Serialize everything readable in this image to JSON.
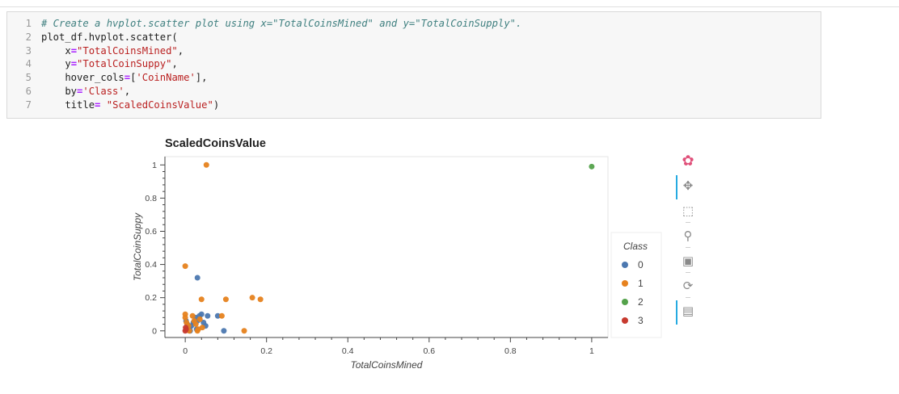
{
  "code_cell": {
    "lines": [
      {
        "n": "1",
        "segs": [
          {
            "c": "cm",
            "t": "# Create a hvplot.scatter plot using x=\"TotalCoinsMined\" and y=\"TotalCoinSupply\"."
          }
        ]
      },
      {
        "n": "2",
        "segs": [
          {
            "c": "",
            "t": "plot_df.hvplot.scatter("
          }
        ]
      },
      {
        "n": "3",
        "segs": [
          {
            "c": "",
            "t": "    x"
          },
          {
            "c": "op",
            "t": "="
          },
          {
            "c": "st",
            "t": "\"TotalCoinsMined\""
          },
          {
            "c": "",
            "t": ","
          }
        ]
      },
      {
        "n": "4",
        "segs": [
          {
            "c": "",
            "t": "    y"
          },
          {
            "c": "op",
            "t": "="
          },
          {
            "c": "st",
            "t": "\"TotalCoinSuppy\""
          },
          {
            "c": "",
            "t": ","
          }
        ]
      },
      {
        "n": "5",
        "segs": [
          {
            "c": "",
            "t": "    hover_cols"
          },
          {
            "c": "op",
            "t": "="
          },
          {
            "c": "",
            "t": "["
          },
          {
            "c": "st",
            "t": "'CoinName'"
          },
          {
            "c": "",
            "t": "],"
          }
        ]
      },
      {
        "n": "6",
        "segs": [
          {
            "c": "",
            "t": "    by"
          },
          {
            "c": "op",
            "t": "="
          },
          {
            "c": "st",
            "t": "'Class'"
          },
          {
            "c": "",
            "t": ","
          }
        ]
      },
      {
        "n": "7",
        "segs": [
          {
            "c": "",
            "t": "    title"
          },
          {
            "c": "op",
            "t": "="
          },
          {
            "c": "",
            "t": " "
          },
          {
            "c": "st",
            "t": "\"ScaledCoinsValue\""
          },
          {
            "c": "",
            "t": ")"
          }
        ]
      }
    ]
  },
  "toolbar": {
    "tools": [
      {
        "name": "bokeh-logo-icon",
        "glyph": "✿",
        "active": false,
        "interactable": false
      },
      {
        "name": "pan-icon",
        "glyph": "✥",
        "active": true,
        "interactable": true
      },
      {
        "name": "box-zoom-icon",
        "glyph": "⬚",
        "active": false,
        "interactable": true
      },
      {
        "name": "wheel-zoom-icon",
        "glyph": "⚲",
        "active": false,
        "interactable": true
      },
      {
        "name": "save-icon",
        "glyph": "▣",
        "active": false,
        "interactable": true
      },
      {
        "name": "reset-icon",
        "glyph": "⟳",
        "active": false,
        "interactable": true
      },
      {
        "name": "hover-icon",
        "glyph": "▤",
        "active": true,
        "interactable": true
      }
    ]
  },
  "chart_data": {
    "type": "scatter",
    "title": "ScaledCoinsValue",
    "xlabel": "TotalCoinsMined",
    "ylabel": "TotalCoinSuppy",
    "xlim": [
      -0.05,
      1.04
    ],
    "ylim": [
      -0.04,
      1.05
    ],
    "xticks": [
      0,
      0.2,
      0.4,
      0.6,
      0.8,
      1
    ],
    "xtick_labels": [
      "0",
      "0.2",
      "0.4",
      "0.6",
      "0.8",
      "1"
    ],
    "yticks": [
      0,
      0.2,
      0.4,
      0.6,
      0.8,
      1
    ],
    "ytick_labels": [
      "0",
      "0.2",
      "0.4",
      "0.6",
      "0.8",
      "1"
    ],
    "grid": false,
    "legend": {
      "title": "Class",
      "placement": "right"
    },
    "series": [
      {
        "name": "0",
        "color": "#30a2da",
        "points": [
          [
            0.002,
            0.06
          ],
          [
            0.005,
            0.04
          ],
          [
            0.01,
            0.02
          ],
          [
            0.015,
            0.03
          ],
          [
            0.02,
            0.05
          ],
          [
            0.025,
            0.08
          ],
          [
            0.03,
            0.06
          ],
          [
            0.035,
            0.09
          ],
          [
            0.04,
            0.1
          ],
          [
            0.045,
            0.05
          ],
          [
            0.05,
            0.03
          ],
          [
            0.055,
            0.09
          ],
          [
            0.03,
            0.32
          ],
          [
            0.08,
            0.09
          ],
          [
            0.095,
            0.0
          ],
          [
            0.012,
            0.0
          ],
          [
            0.028,
            0.01
          ]
        ]
      },
      {
        "name": "1",
        "color": "#fc4f30",
        "points": [
          [
            0.0,
            0.39
          ],
          [
            0.052,
            1.0
          ],
          [
            0.04,
            0.19
          ],
          [
            0.1,
            0.19
          ],
          [
            0.165,
            0.2
          ],
          [
            0.185,
            0.19
          ],
          [
            0.145,
            0.0
          ],
          [
            0.09,
            0.09
          ],
          [
            0.0,
            0.1
          ],
          [
            0.0,
            0.08
          ],
          [
            0.003,
            0.05
          ],
          [
            0.008,
            0.03
          ],
          [
            0.018,
            0.09
          ],
          [
            0.022,
            0.06
          ],
          [
            0.026,
            0.04
          ],
          [
            0.032,
            0.01
          ],
          [
            0.036,
            0.07
          ],
          [
            0.042,
            0.02
          ],
          [
            0.03,
            0.0
          ],
          [
            0.01,
            0.0
          ]
        ]
      },
      {
        "name": "2",
        "color": "#e5ae38",
        "points": [
          [
            1.0,
            0.99
          ]
        ]
      },
      {
        "name": "3",
        "color": "#6d904f",
        "points": [
          [
            0.0,
            0.0
          ],
          [
            0.002,
            0.01
          ],
          [
            0.001,
            0.02
          ]
        ]
      }
    ]
  }
}
